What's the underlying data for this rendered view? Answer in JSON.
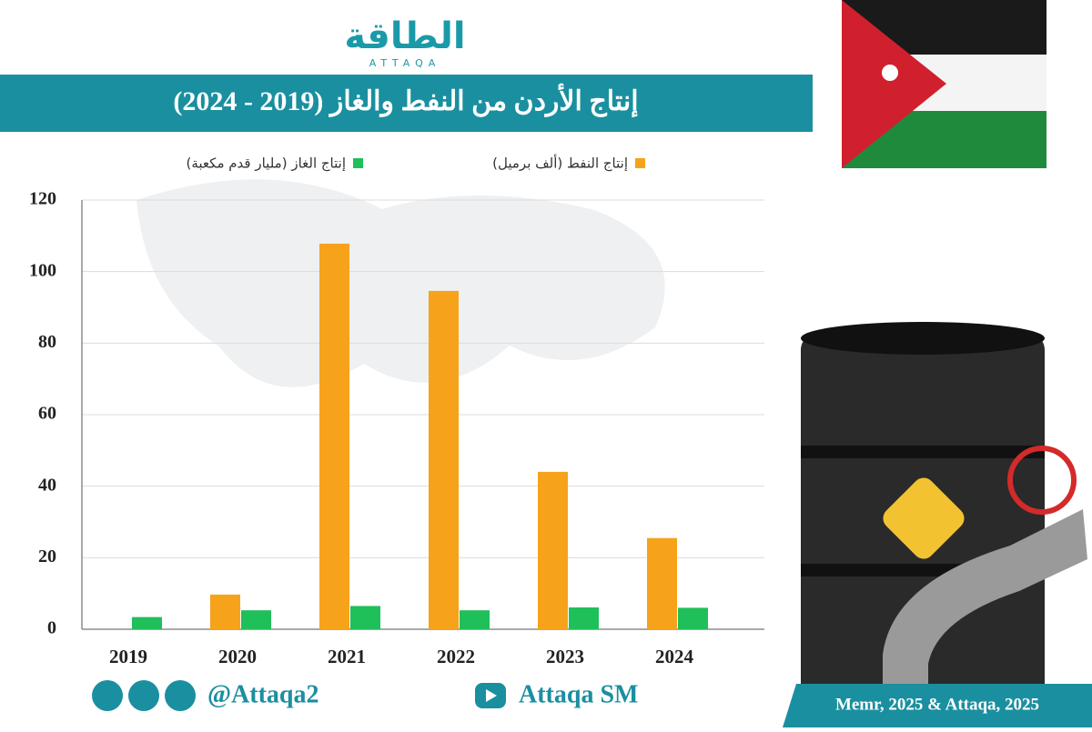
{
  "logo": {
    "name": "الطاقة",
    "latin": "ATTAQA"
  },
  "chart_data": {
    "type": "bar",
    "title": "إنتاج الأردن من النفط والغاز (2019 - 2024)",
    "categories": [
      "2019",
      "2020",
      "2021",
      "2022",
      "2023",
      "2024"
    ],
    "series": [
      {
        "name": "إنتاج النفط (ألف برميل)",
        "color": "#f7a21b",
        "values": [
          0,
          9.7,
          107.8,
          94.6,
          44,
          25.5
        ]
      },
      {
        "name": "إنتاج الغاز (مليار قدم مكعبة)",
        "color": "#1fbf5a",
        "values": [
          3.4,
          5.3,
          6.5,
          5.3,
          6.1,
          6.0
        ]
      }
    ],
    "ylim": [
      0,
      120
    ],
    "yticks": [
      0,
      20,
      40,
      60,
      80,
      100,
      120
    ],
    "grid": true
  },
  "social": {
    "handle": "@Attaqa2",
    "youtube": "Attaqa SM"
  },
  "source": "Memr, 2025 & Attaqa, 2025"
}
